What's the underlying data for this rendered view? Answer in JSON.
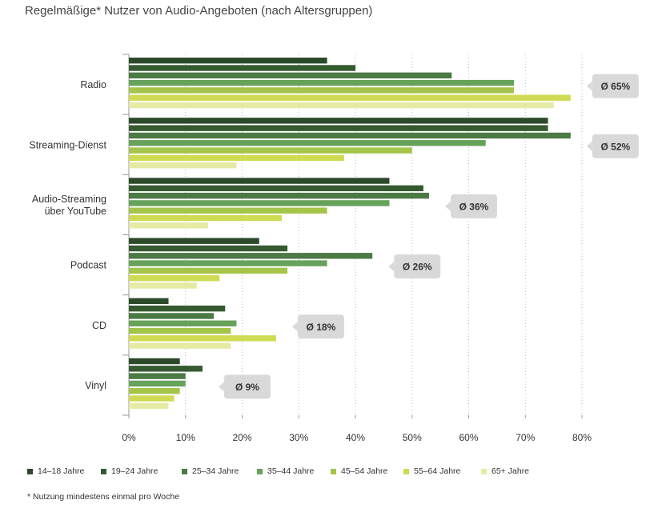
{
  "chart_data": {
    "type": "bar",
    "orientation": "horizontal",
    "title": "Regelmäßige* Nutzer von Audio-Angeboten (nach Altersgruppen)",
    "categories": [
      "Radio",
      "Streaming-Dienst",
      "Audio-Streaming\nüber YouTube",
      "Podcast",
      "CD",
      "Vinyl"
    ],
    "averages": [
      "Ø 65%",
      "Ø 52%",
      "Ø 36%",
      "Ø 26%",
      "Ø 18%",
      "Ø 9%"
    ],
    "series": [
      {
        "name": "14–18 Jahre",
        "color": "#2c4a2a",
        "values": [
          35,
          74,
          46,
          23,
          7,
          9
        ]
      },
      {
        "name": "19–24 Jahre",
        "color": "#355a30",
        "values": [
          40,
          74,
          52,
          28,
          17,
          13
        ]
      },
      {
        "name": "25–34 Jahre",
        "color": "#4b7a44",
        "values": [
          57,
          78,
          53,
          43,
          15,
          10
        ]
      },
      {
        "name": "35–44 Jahre",
        "color": "#66a25a",
        "values": [
          68,
          63,
          46,
          35,
          19,
          10
        ]
      },
      {
        "name": "45–54 Jahre",
        "color": "#a4c44a",
        "values": [
          68,
          50,
          35,
          28,
          18,
          9
        ]
      },
      {
        "name": "55–64 Jahre",
        "color": "#cfdb52",
        "values": [
          78,
          38,
          27,
          16,
          26,
          8
        ]
      },
      {
        "name": "65+ Jahre",
        "color": "#e5eba4",
        "values": [
          75,
          19,
          14,
          12,
          18,
          7
        ]
      }
    ],
    "x_ticks": [
      "0%",
      "10%",
      "20%",
      "30%",
      "40%",
      "50%",
      "60%",
      "70%",
      "80%"
    ],
    "xlim": [
      0,
      80
    ],
    "grid": true,
    "legend": "bottom"
  },
  "footnote": "* Nutzung mindestens einmal pro Woche"
}
